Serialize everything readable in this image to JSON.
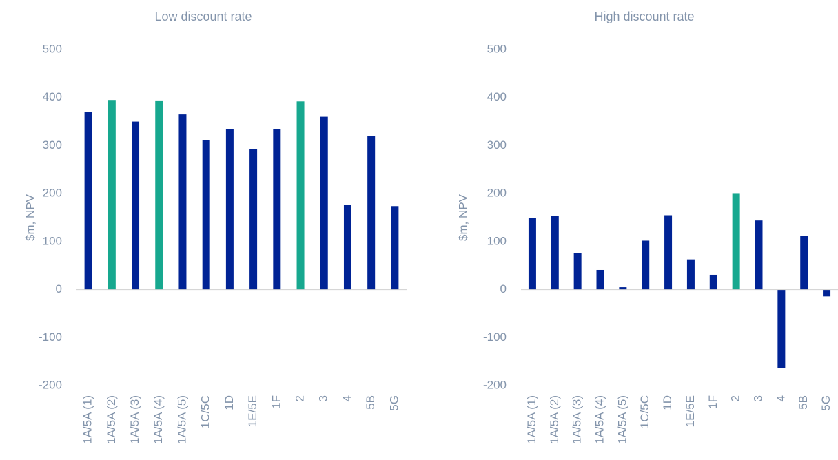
{
  "chart_data": [
    {
      "type": "bar",
      "title": "Low discount rate",
      "y_label": "$m, NPV",
      "categories": [
        "1A/5A (1)",
        "1A/5A (2)",
        "1A/5A (3)",
        "1A/5A (4)",
        "1A/5A (5)",
        "1C/5C",
        "1D",
        "1E/5E",
        "1F",
        "2",
        "3",
        "4",
        "5B",
        "5G"
      ],
      "values": [
        370,
        395,
        350,
        394,
        365,
        312,
        335,
        293,
        335,
        392,
        360,
        176,
        320,
        174
      ],
      "colors": [
        "#002395",
        "#17a88f",
        "#002395",
        "#17a88f",
        "#002395",
        "#002395",
        "#002395",
        "#002395",
        "#002395",
        "#17a88f",
        "#002395",
        "#002395",
        "#002395",
        "#002395"
      ],
      "ylim": [
        -200,
        500
      ],
      "yticks": [
        -200,
        -100,
        0,
        100,
        200,
        300,
        400,
        500
      ],
      "grid": false
    },
    {
      "type": "bar",
      "title": "High discount rate",
      "y_label": "$m, NPV",
      "categories": [
        "1A/5A (1)",
        "1A/5A (2)",
        "1A/5A (3)",
        "1A/5A (4)",
        "1A/5A (5)",
        "1C/5C",
        "1D",
        "1E/5E",
        "1F",
        "2",
        "3",
        "4",
        "5B",
        "5G"
      ],
      "values": [
        150,
        153,
        76,
        41,
        5,
        102,
        155,
        63,
        31,
        201,
        144,
        -163,
        112,
        -14
      ],
      "colors": [
        "#002395",
        "#002395",
        "#002395",
        "#002395",
        "#002395",
        "#002395",
        "#002395",
        "#002395",
        "#002395",
        "#17a88f",
        "#002395",
        "#002395",
        "#002395",
        "#002395"
      ],
      "ylim": [
        -200,
        500
      ],
      "yticks": [
        -200,
        -100,
        0,
        100,
        200,
        300,
        400,
        500
      ],
      "grid": false
    }
  ]
}
